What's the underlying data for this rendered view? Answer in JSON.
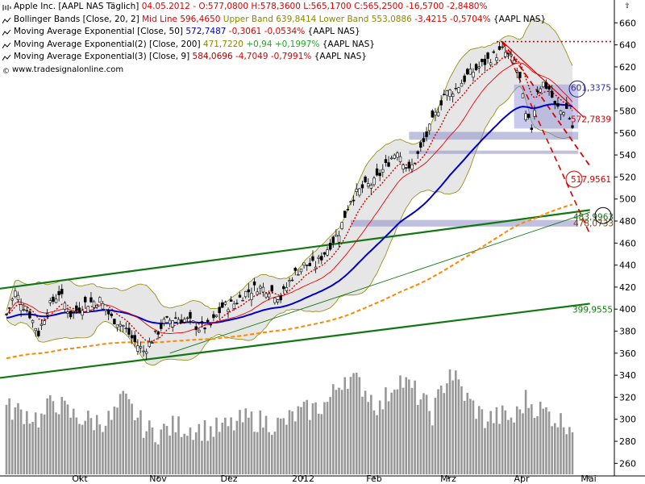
{
  "legend": {
    "line1": {
      "name": "Apple Inc. [AAPL NAS  Täglich]",
      "ohlc": "04.05.2012 - O:577,0800 H:578,3600 L:565,1700 C:565,2500 -16,5700 -2,8480%"
    },
    "line2": {
      "name": "Bollinger Bands [Close, 20, 2]",
      "mid": "Mid Line 596,4650",
      "upper": "Upper Band 639,8414",
      "lower": "Lower Band 553,0886",
      "chg": "-3,4215 -0,5704%",
      "tail": "{AAPL NAS}"
    },
    "line3": {
      "name": "Moving Average Exponential [Close, 50]",
      "val": "572,7487",
      "chg": "-0,3061 -0,0534%",
      "tail": "{AAPL NAS}"
    },
    "line4": {
      "name": "Moving Average Exponential(2) [Close, 200]",
      "val": "471,7220",
      "chg": "+0,94 +0,1997%",
      "tail": "{AAPL NAS}"
    },
    "line5": {
      "name": "Moving Average Exponential(3) [Close, 9]",
      "val": "584,0696",
      "chg": "-4,7049 -0,7991%",
      "tail": "{AAPL NAS}"
    },
    "credit": "www.tradesignalonline.com"
  },
  "scroll_up_glyph": "⇧",
  "colors": {
    "price": "#000000",
    "bollinger": "#8a8a00",
    "bb_mid": "#ee0000",
    "ema50": "#0000cc",
    "ema200": "#ff8800",
    "ema9": "#cc0000",
    "trend": "#117711",
    "band_fill": "#e6e6e6",
    "zone": "#8c8cc8",
    "volume": "#8c8c8c"
  },
  "chart_data": {
    "type": "candlestick",
    "title": "Apple Inc. [AAPL NAS Täglich]",
    "ylim": [
      250,
      670
    ],
    "y_ticks": [
      260,
      280,
      300,
      320,
      340,
      360,
      380,
      400,
      420,
      440,
      460,
      480,
      500,
      520,
      540,
      560,
      580,
      600,
      620,
      640,
      660
    ],
    "x_labels": [
      "Okt",
      "Nov",
      "Dez",
      "2012",
      "Feb",
      "Mrz",
      "Apr",
      "Mai"
    ],
    "close_anchors": [
      [
        0,
        395
      ],
      [
        3,
        415
      ],
      [
        8,
        395
      ],
      [
        11,
        378
      ],
      [
        14,
        400
      ],
      [
        18,
        415
      ],
      [
        22,
        395
      ],
      [
        27,
        405
      ],
      [
        32,
        408
      ],
      [
        36,
        392
      ],
      [
        40,
        385
      ],
      [
        44,
        370
      ],
      [
        47,
        362
      ],
      [
        50,
        372
      ],
      [
        54,
        388
      ],
      [
        58,
        392
      ],
      [
        62,
        390
      ],
      [
        66,
        383
      ],
      [
        70,
        385
      ],
      [
        74,
        402
      ],
      [
        78,
        405
      ],
      [
        82,
        415
      ],
      [
        86,
        420
      ],
      [
        90,
        418
      ],
      [
        94,
        410
      ],
      [
        98,
        430
      ],
      [
        102,
        440
      ],
      [
        106,
        440
      ],
      [
        110,
        455
      ],
      [
        114,
        470
      ],
      [
        118,
        500
      ],
      [
        122,
        510
      ],
      [
        126,
        515
      ],
      [
        130,
        530
      ],
      [
        134,
        545
      ],
      [
        138,
        525
      ],
      [
        142,
        545
      ],
      [
        146,
        570
      ],
      [
        150,
        595
      ],
      [
        154,
        600
      ],
      [
        158,
        612
      ],
      [
        162,
        620
      ],
      [
        166,
        628
      ],
      [
        170,
        635
      ],
      [
        174,
        625
      ],
      [
        176,
        608
      ],
      [
        178,
        575
      ],
      [
        180,
        565
      ],
      [
        182,
        600
      ],
      [
        184,
        605
      ],
      [
        186,
        600
      ],
      [
        188,
        585
      ],
      [
        190,
        580
      ],
      [
        192,
        582
      ],
      [
        194,
        565
      ]
    ],
    "volume_anchors": [
      [
        0,
        310
      ],
      [
        6,
        306
      ],
      [
        12,
        300
      ],
      [
        16,
        318
      ],
      [
        22,
        304
      ],
      [
        30,
        298
      ],
      [
        36,
        300
      ],
      [
        40,
        318
      ],
      [
        44,
        305
      ],
      [
        48,
        290
      ],
      [
        52,
        288
      ],
      [
        58,
        294
      ],
      [
        64,
        292
      ],
      [
        70,
        290
      ],
      [
        76,
        293
      ],
      [
        82,
        300
      ],
      [
        88,
        298
      ],
      [
        94,
        295
      ],
      [
        100,
        305
      ],
      [
        106,
        310
      ],
      [
        110,
        315
      ],
      [
        116,
        340
      ],
      [
        122,
        330
      ],
      [
        128,
        310
      ],
      [
        134,
        338
      ],
      [
        140,
        325
      ],
      [
        146,
        305
      ],
      [
        152,
        345
      ],
      [
        158,
        318
      ],
      [
        164,
        300
      ],
      [
        170,
        303
      ],
      [
        174,
        300
      ],
      [
        178,
        318
      ],
      [
        182,
        310
      ],
      [
        186,
        305
      ],
      [
        190,
        298
      ],
      [
        194,
        296
      ]
    ],
    "annotations": [
      {
        "label": "601,3375",
        "value": 601.3375,
        "color": "#2a2aaa"
      },
      {
        "label": "572,7839",
        "value": 572.7839,
        "color": "#cc0000"
      },
      {
        "label": "517,9561",
        "value": 517.9561,
        "color": "#cc0000"
      },
      {
        "label": "483,9963",
        "value": 483.9963,
        "color": "#117711"
      },
      {
        "label": "478,0733",
        "value": 478.0733,
        "color": "#8a3a00"
      },
      {
        "label": "399,9555",
        "value": 399.9555,
        "color": "#117711"
      }
    ],
    "horizontal_lines": [
      {
        "value": 643,
        "color": "#cc0000",
        "style": "dotted"
      }
    ],
    "trend_lines": [
      {
        "from": [
          -4,
          418
        ],
        "to": [
          200,
          490
        ],
        "color": "#117711",
        "width": 2.2
      },
      {
        "from": [
          -4,
          337
        ],
        "to": [
          200,
          405
        ],
        "color": "#117711",
        "width": 2.2
      },
      {
        "from": [
          56,
          360
        ],
        "to": [
          200,
          488
        ],
        "color": "#117711",
        "width": 0.9
      },
      {
        "from": [
          170,
          643
        ],
        "to": [
          198,
          574
        ],
        "color": "#dd0000",
        "width": 1.2,
        "style": "solid"
      },
      {
        "from": [
          170,
          643
        ],
        "to": [
          200,
          530
        ],
        "color": "#dd0000",
        "width": 1.8,
        "style": "dashed"
      },
      {
        "from": [
          170,
          643
        ],
        "to": [
          200,
          468
        ],
        "color": "#dd0000",
        "width": 1.6,
        "style": "dashed"
      }
    ],
    "zones": [
      {
        "from": 138,
        "to": 196,
        "low": 554,
        "high": 561
      },
      {
        "from": 138,
        "to": 196,
        "low": 541,
        "high": 544
      },
      {
        "from": 118,
        "to": 196,
        "low": 475,
        "high": 481
      }
    ]
  }
}
